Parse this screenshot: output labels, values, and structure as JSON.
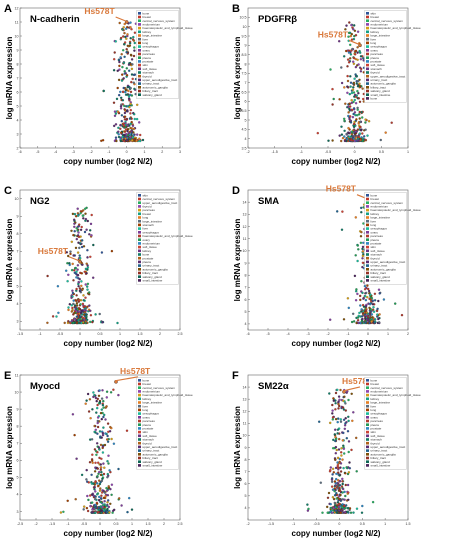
{
  "figure": {
    "highlight_color": "#d9783a",
    "ylabel": "log mRNA expression",
    "xlabel": "copy number (log2 N/2)"
  },
  "chart_data": [
    {
      "type": "scatter",
      "letter": "A",
      "title": "N-cadherin",
      "xlabel": "copy number (log2 N/2)",
      "ylabel": "log mRNA expression",
      "xlim": [
        -6,
        3
      ],
      "ylim": [
        2,
        12
      ],
      "xticks": [
        -6,
        -5,
        -4,
        -3,
        -2,
        -1,
        0,
        1,
        2,
        3
      ],
      "yticks": [
        2,
        3,
        4,
        5,
        6,
        7,
        8,
        9,
        10,
        11,
        12
      ],
      "highlight": {
        "label": "Hs578T",
        "x": 0.0,
        "y": 11.0
      },
      "legend": [
        "bone",
        "breast",
        "central_nervous_system",
        "endometrium",
        "haematopoietic_and_lymphoid_tissue",
        "kidney",
        "large_intestine",
        "liver",
        "lung",
        "oesophagus",
        "ovary",
        "pancreas",
        "pleura",
        "prostate",
        "skin",
        "soft_tissue",
        "stomach",
        "thyroid",
        "upper_aerodigestive_tract",
        "urinary_tract",
        "autonomic_ganglia",
        "biliary_tract",
        "salivary_gland"
      ]
    },
    {
      "type": "scatter",
      "letter": "B",
      "title": "PDGFRβ",
      "xlabel": "copy number (log2 N/2)",
      "ylabel": "log mRNA expression",
      "xlim": [
        -2,
        1
      ],
      "ylim": [
        3.5,
        11
      ],
      "xticks": [
        -2,
        -1.5,
        -1,
        -0.5,
        0,
        0.5,
        1
      ],
      "yticks": [
        3.5,
        4,
        4.5,
        5,
        5.5,
        6,
        6.5,
        7,
        7.5,
        8,
        8.5,
        9,
        9.5,
        10,
        10.5
      ],
      "highlight": {
        "label": "Hs578T",
        "x": 0.1,
        "y": 9.0
      },
      "legend": [
        "skin",
        "breast",
        "central_nervous_system",
        "endometrium",
        "haematopoietic_and_lymphoid_tissue",
        "kidney",
        "large_intestine",
        "liver",
        "lung",
        "oesophagus",
        "ovary",
        "pancreas",
        "pleura",
        "prostate",
        "soft_tissue",
        "stomach",
        "thyroid",
        "upper_aerodigestive_tract",
        "urinary_tract",
        "autonomic_ganglia",
        "biliary_tract",
        "salivary_gland",
        "small_intestine",
        "bone"
      ]
    },
    {
      "type": "scatter",
      "letter": "C",
      "title": "NG2",
      "xlabel": "copy number (log2 N/2)",
      "ylabel": "log mRNA expression",
      "xlim": [
        -1.5,
        2.5
      ],
      "ylim": [
        2.5,
        10.5
      ],
      "xticks": [
        -1.5,
        -1,
        -0.5,
        0,
        0.5,
        1,
        1.5,
        2,
        2.5
      ],
      "yticks": [
        3,
        4,
        5,
        6,
        7,
        8,
        9,
        10
      ],
      "highlight": {
        "label": "Hs578T",
        "x": 0.0,
        "y": 6.4
      },
      "legend": [
        "skin",
        "central_nervous_system",
        "upper_aerodigestive_tract",
        "thyroid",
        "pancreas",
        "breast",
        "lung",
        "large_intestine",
        "stomach",
        "liver",
        "oesophagus",
        "haematopoietic_and_lymphoid_tissue",
        "ovary",
        "endometrium",
        "soft_tissue",
        "kidney",
        "bone",
        "prostate",
        "pleura",
        "urinary_tract",
        "autonomic_ganglia",
        "biliary_tract",
        "salivary_gland",
        "small_intestine"
      ]
    },
    {
      "type": "scatter",
      "letter": "D",
      "title": "SMA",
      "xlabel": "copy number (log2 N/2)",
      "ylabel": "log mRNA expression",
      "xlim": [
        -6,
        2
      ],
      "ylim": [
        3.5,
        15
      ],
      "xticks": [
        -6,
        -5,
        -4,
        -3,
        -2,
        -1,
        0,
        1,
        2
      ],
      "yticks": [
        4,
        5,
        6,
        7,
        8,
        9,
        10,
        11,
        12,
        13,
        14
      ],
      "highlight": {
        "label": "Hs578T",
        "x": 0.0,
        "y": 14.2
      },
      "legend": [
        "bone",
        "breast",
        "central_nervous_system",
        "endometrium",
        "haematopoietic_and_lymphoid_tissue",
        "kidney",
        "large_intestine",
        "liver",
        "lung",
        "oesophagus",
        "ovary",
        "pancreas",
        "pleura",
        "prostate",
        "skin",
        "soft_tissue",
        "stomach",
        "thyroid",
        "upper_aerodigestive_tract",
        "urinary_tract",
        "autonomic_ganglia",
        "biliary_tract",
        "salivary_gland",
        "small_intestine"
      ]
    },
    {
      "type": "scatter",
      "letter": "E",
      "title": "Myocd",
      "xlabel": "copy number (log2 N/2)",
      "ylabel": "log mRNA expression",
      "xlim": [
        -2.5,
        2.5
      ],
      "ylim": [
        2.5,
        11
      ],
      "xticks": [
        -2.5,
        -2,
        -1.5,
        -1,
        -0.5,
        0,
        0.5,
        1,
        1.5,
        2,
        2.5
      ],
      "yticks": [
        3,
        4,
        5,
        6,
        7,
        8,
        9,
        10,
        11
      ],
      "highlight": {
        "label": "Hs578T",
        "x": 0.5,
        "y": 10.6
      },
      "legend": [
        "bone",
        "breast",
        "central_nervous_system",
        "endometrium",
        "haematopoietic_and_lymphoid_tissue",
        "kidney",
        "large_intestine",
        "liver",
        "lung",
        "oesophagus",
        "ovary",
        "pancreas",
        "pleura",
        "prostate",
        "skin",
        "soft_tissue",
        "stomach",
        "thyroid",
        "upper_aerodigestive_tract",
        "urinary_tract",
        "autonomic_ganglia",
        "biliary_tract",
        "salivary_gland",
        "small_intestine"
      ]
    },
    {
      "type": "scatter",
      "letter": "F",
      "title": "SM22α",
      "xlabel": "copy number (log2 N/2)",
      "ylabel": "log mRNA expression",
      "xlim": [
        -2,
        1.5
      ],
      "ylim": [
        3,
        15
      ],
      "xticks": [
        -2,
        -1.5,
        -1,
        -0.5,
        0,
        0.5,
        1,
        1.5
      ],
      "yticks": [
        4,
        5,
        6,
        7,
        8,
        9,
        10,
        11,
        12,
        13,
        14
      ],
      "highlight": {
        "label": "Hs578T",
        "x": 0.1,
        "y": 13.6
      },
      "legend": [
        "bone",
        "breast",
        "central_nervous_system",
        "endometrium",
        "haematopoietic_and_lymphoid_tissue",
        "kidney",
        "large_intestine",
        "liver",
        "lung",
        "oesophagus",
        "ovary",
        "pancreas",
        "pleura",
        "prostate",
        "skin",
        "soft_tissue",
        "stomach",
        "thyroid",
        "upper_aerodigestive_tract",
        "urinary_tract",
        "autonomic_ganglia",
        "biliary_tract",
        "salivary_gland",
        "small_intestine"
      ]
    }
  ]
}
